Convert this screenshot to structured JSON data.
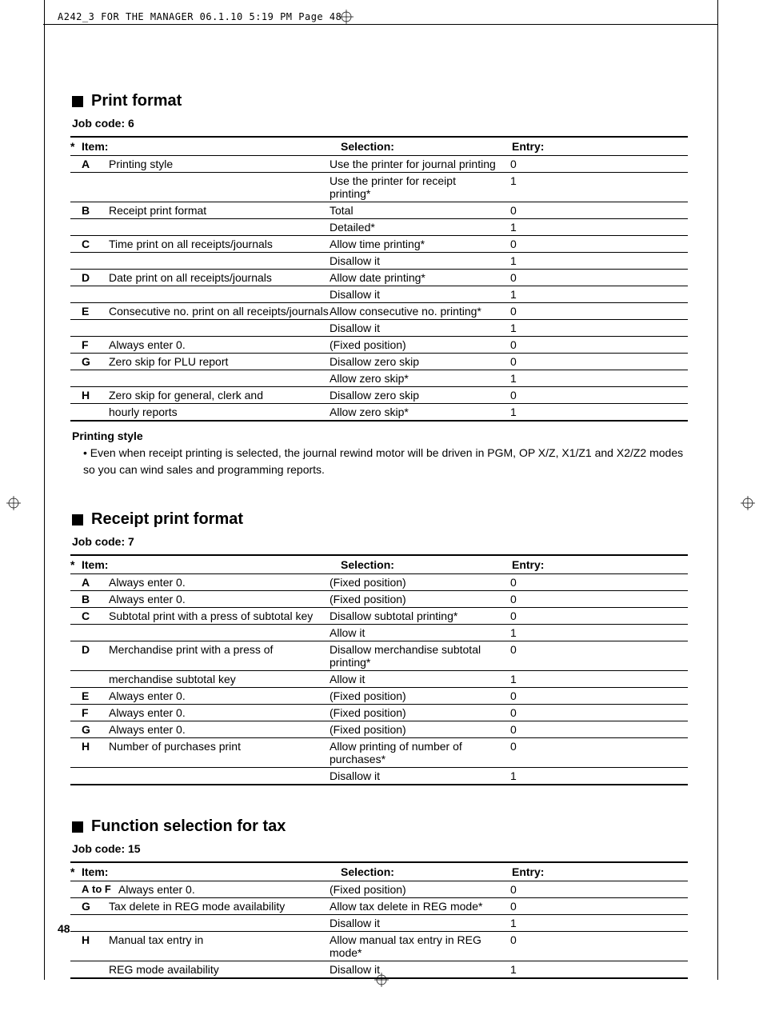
{
  "header": "A242_3 FOR THE MANAGER  06.1.10 5:19 PM  Page 48",
  "page_number": "48",
  "sections": [
    {
      "title": "Print format",
      "job_code": "Job code:  6",
      "headers": {
        "star": "*",
        "item": "Item:",
        "selection": "Selection:",
        "entry": "Entry:"
      },
      "rows": [
        {
          "letter": "A",
          "desc": "Printing style",
          "selection": "Use the printer for journal printing",
          "entry": "0"
        },
        {
          "letter": "",
          "desc": "",
          "selection": "Use the printer for receipt printing*",
          "entry": "1"
        },
        {
          "letter": "B",
          "desc": "Receipt print format",
          "selection": "Total",
          "entry": "0"
        },
        {
          "letter": "",
          "desc": "",
          "selection": "Detailed*",
          "entry": "1"
        },
        {
          "letter": "C",
          "desc": "Time print on all receipts/journals",
          "selection": "Allow time printing*",
          "entry": "0"
        },
        {
          "letter": "",
          "desc": "",
          "selection": "Disallow it",
          "entry": "1"
        },
        {
          "letter": "D",
          "desc": "Date print on all receipts/journals",
          "selection": "Allow date printing*",
          "entry": "0"
        },
        {
          "letter": "",
          "desc": "",
          "selection": "Disallow it",
          "entry": "1"
        },
        {
          "letter": "E",
          "desc": "Consecutive no. print on all receipts/journals",
          "selection": "Allow consecutive no. printing*",
          "entry": "0"
        },
        {
          "letter": "",
          "desc": "",
          "selection": "Disallow it",
          "entry": "1"
        },
        {
          "letter": "F",
          "desc": "Always enter 0.",
          "selection": "(Fixed position)",
          "entry": "0"
        },
        {
          "letter": "G",
          "desc": "Zero skip for PLU report",
          "selection": "Disallow zero skip",
          "entry": "0"
        },
        {
          "letter": "",
          "desc": "",
          "selection": "Allow zero skip*",
          "entry": "1"
        },
        {
          "letter": "H",
          "desc": "Zero skip for general, clerk and",
          "selection": "Disallow zero skip",
          "entry": "0"
        },
        {
          "letter": "",
          "desc": "hourly reports",
          "selection": "Allow zero skip*",
          "entry": "1"
        }
      ],
      "note": {
        "title": "Printing style",
        "bullet": "•",
        "text": "Even when receipt printing is selected, the journal rewind motor will be driven in PGM, OP X/Z, X1/Z1 and X2/Z2 modes so you can wind sales and programming reports."
      }
    },
    {
      "title": "Receipt print format",
      "job_code": "Job code:  7",
      "headers": {
        "star": "*",
        "item": "Item:",
        "selection": "Selection:",
        "entry": "Entry:"
      },
      "rows": [
        {
          "letter": "A",
          "desc": "Always enter 0.",
          "selection": "(Fixed position)",
          "entry": "0"
        },
        {
          "letter": "B",
          "desc": "Always enter 0.",
          "selection": "(Fixed position)",
          "entry": "0"
        },
        {
          "letter": "C",
          "desc": "Subtotal print with a press of subtotal key",
          "selection": "Disallow subtotal printing*",
          "entry": "0"
        },
        {
          "letter": "",
          "desc": "",
          "selection": "Allow it",
          "entry": "1"
        },
        {
          "letter": "D",
          "desc": "Merchandise print with a press of",
          "selection": "Disallow merchandise subtotal printing*",
          "entry": "0"
        },
        {
          "letter": "",
          "desc": "merchandise subtotal key",
          "selection": "Allow it",
          "entry": "1"
        },
        {
          "letter": "E",
          "desc": "Always enter 0.",
          "selection": "(Fixed position)",
          "entry": "0"
        },
        {
          "letter": "F",
          "desc": "Always enter 0.",
          "selection": "(Fixed position)",
          "entry": "0"
        },
        {
          "letter": "G",
          "desc": "Always enter 0.",
          "selection": "(Fixed position)",
          "entry": "0"
        },
        {
          "letter": "H",
          "desc": "Number of purchases print",
          "selection": "Allow printing of number of purchases*",
          "entry": "0"
        },
        {
          "letter": "",
          "desc": "",
          "selection": "Disallow it",
          "entry": "1"
        }
      ]
    },
    {
      "title": "Function selection for tax",
      "job_code": "Job code:  15",
      "headers": {
        "star": "*",
        "item": "Item:",
        "selection": "Selection:",
        "entry": "Entry:"
      },
      "rows": [
        {
          "letter": "A to F",
          "desc": "Always enter 0.",
          "selection": "(Fixed position)",
          "entry": "0",
          "wide": true
        },
        {
          "letter": "G",
          "desc": "Tax delete in REG mode availability",
          "selection": "Allow tax delete in REG mode*",
          "entry": "0"
        },
        {
          "letter": "",
          "desc": "",
          "selection": "Disallow it",
          "entry": "1"
        },
        {
          "letter": "H",
          "desc": "Manual tax entry in",
          "selection": "Allow manual tax entry in REG mode*",
          "entry": "0"
        },
        {
          "letter": "",
          "desc": "REG mode availability",
          "selection": "Disallow it",
          "entry": "1"
        }
      ]
    }
  ]
}
